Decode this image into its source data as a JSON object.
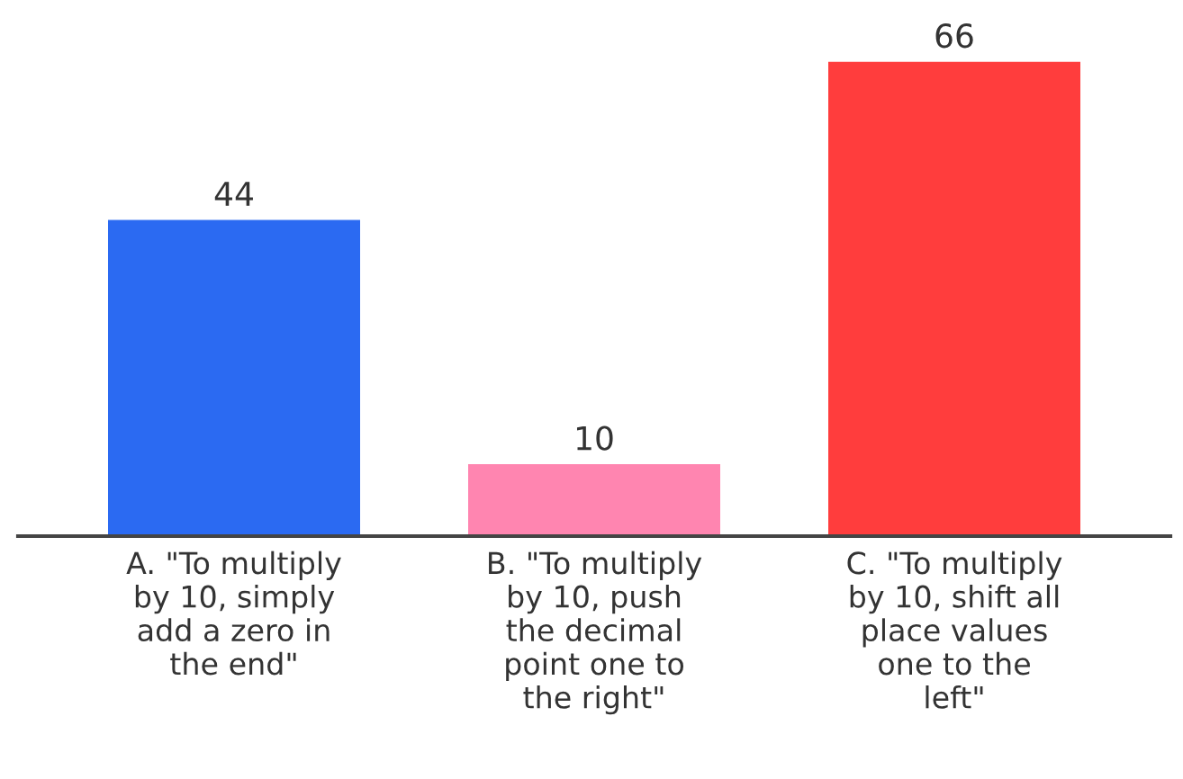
{
  "chart_data": {
    "type": "bar",
    "categories": [
      "A. \"To multiply\nby 10, simply\nadd a zero in\nthe end\"",
      "B. \"To multiply\nby 10, push\nthe decimal\npoint one to\nthe right\"",
      "C. \"To multiply\nby 10, shift all\nplace values\none to the\nleft\""
    ],
    "values": [
      44,
      10,
      66
    ],
    "colors": [
      "#2b6af2",
      "#ff85b0",
      "#ff3d3d"
    ],
    "data_labels": true,
    "grid": false,
    "legend": false
  }
}
